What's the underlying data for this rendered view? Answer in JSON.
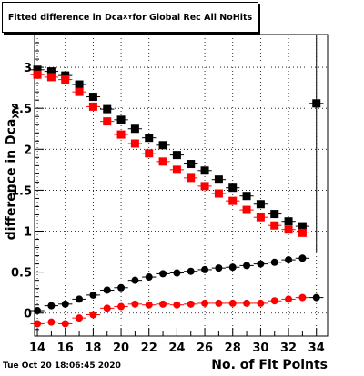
{
  "header": {
    "title_main": "Fitted difference in Dca",
    "title_sub": "XY",
    "title_rest": " for Global Rec All NoHits"
  },
  "footer": {
    "timestamp": "Tue Oct 20 18:06:45 2020"
  },
  "colors": {
    "series_black": "#000000",
    "series_red": "#ff0000",
    "grid": "#000000"
  },
  "chart_data": {
    "type": "scatter",
    "title": "Fitted difference in Dca_XY for Global Rec All NoHits",
    "xlabel": "No. of Fit Points",
    "ylabel_main": "difference in Dca",
    "ylabel_sub": "XY",
    "xlim": [
      13.8,
      34.8
    ],
    "ylim": [
      -0.28,
      3.4
    ],
    "grid": true,
    "xticks": [
      14,
      16,
      18,
      20,
      22,
      24,
      26,
      28,
      30,
      32,
      34
    ],
    "xtick_labels": [
      "14",
      "16",
      "18",
      "20",
      "22",
      "24",
      "26",
      "28",
      "30",
      "32",
      "34"
    ],
    "yticks": [
      0,
      0.5,
      1,
      1.5,
      2,
      2.5,
      3
    ],
    "ytick_labels": [
      "0",
      "0.5",
      "1",
      "1.5",
      "2",
      "2.5",
      "3"
    ],
    "series": [
      {
        "marker": "square",
        "color": "#000000",
        "x": [
          14,
          15,
          16,
          17,
          18,
          19,
          20,
          21,
          22,
          23,
          24,
          25,
          26,
          27,
          28,
          29,
          30,
          31,
          32,
          33,
          34
        ],
        "y": [
          2.97,
          2.95,
          2.9,
          2.79,
          2.64,
          2.49,
          2.36,
          2.25,
          2.14,
          2.05,
          1.93,
          1.82,
          1.74,
          1.63,
          1.53,
          1.43,
          1.33,
          1.21,
          1.12,
          1.06,
          2.56
        ]
      },
      {
        "marker": "square",
        "color": "#ff0000",
        "x": [
          14,
          15,
          16,
          17,
          18,
          19,
          20,
          21,
          22,
          23,
          24,
          25,
          26,
          27,
          28,
          29,
          30,
          31,
          32,
          33
        ],
        "y": [
          2.91,
          2.88,
          2.85,
          2.7,
          2.52,
          2.34,
          2.18,
          2.07,
          1.95,
          1.85,
          1.75,
          1.65,
          1.55,
          1.46,
          1.37,
          1.26,
          1.17,
          1.07,
          1.02,
          0.98
        ]
      },
      {
        "marker": "circle",
        "color": "#000000",
        "x": [
          14,
          15,
          16,
          17,
          18,
          19,
          20,
          21,
          22,
          23,
          24,
          25,
          26,
          27,
          28,
          29,
          30,
          31,
          32,
          33,
          34
        ],
        "y": [
          0.03,
          0.09,
          0.11,
          0.17,
          0.22,
          0.28,
          0.31,
          0.4,
          0.44,
          0.48,
          0.49,
          0.51,
          0.53,
          0.55,
          0.56,
          0.58,
          0.6,
          0.62,
          0.65,
          0.67,
          0.19
        ]
      },
      {
        "marker": "circle",
        "color": "#ff0000",
        "x": [
          14,
          15,
          16,
          17,
          18,
          19,
          20,
          21,
          22,
          23,
          24,
          25,
          26,
          27,
          28,
          29,
          30,
          31,
          32,
          33
        ],
        "y": [
          -0.13,
          -0.11,
          -0.13,
          -0.06,
          -0.02,
          0.06,
          0.08,
          0.11,
          0.1,
          0.11,
          0.1,
          0.11,
          0.12,
          0.12,
          0.12,
          0.12,
          0.12,
          0.15,
          0.17,
          0.19
        ]
      }
    ]
  }
}
